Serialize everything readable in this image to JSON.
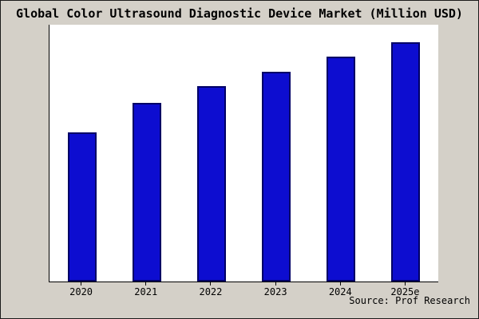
{
  "title": "Global Color Ultrasound Diagnostic Device Market (Million USD)",
  "source": "Source: Prof Research",
  "colors": {
    "background": "#d4d0c8",
    "plot_background": "#ffffff",
    "bar_fill": "#0d0dd0",
    "bar_border": "#000066",
    "axis": "#000000",
    "text": "#000000"
  },
  "chart_data": {
    "type": "bar",
    "categories": [
      "2020",
      "2021",
      "2022",
      "2023",
      "2024",
      "2025e"
    ],
    "values": [
      186,
      223,
      243,
      261,
      280,
      298
    ],
    "title": "Global Color Ultrasound Diagnostic Device Market (Million USD)",
    "xlabel": "",
    "ylabel": "",
    "ylim": [
      0,
      320
    ],
    "grid": false,
    "legend": false,
    "note": "no y-axis tick labels shown; values estimated from bar heights"
  }
}
